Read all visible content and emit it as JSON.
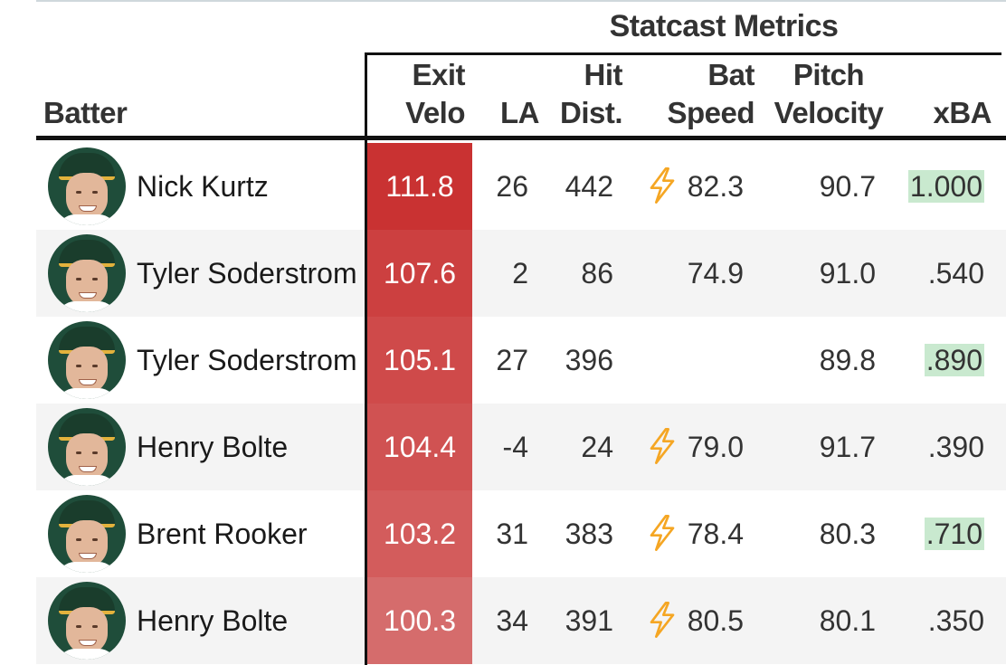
{
  "group_title": "Statcast Metrics",
  "headers": {
    "batter": "Batter",
    "exit_velo": [
      "Exit",
      "Velo"
    ],
    "la": "LA",
    "hit_dist": [
      "Hit",
      "Dist."
    ],
    "bat_speed": [
      "Bat",
      "Speed"
    ],
    "pitch_velocity": [
      "Pitch",
      "Velocity"
    ],
    "xba": "xBA"
  },
  "colors": {
    "ev_scale": [
      "#c93232",
      "#cc4040",
      "#cf4a4a",
      "#d05252",
      "#d35c5c",
      "#d56c6c"
    ],
    "xba_highlight": "#c9e9cf",
    "bolt": "#f5a623"
  },
  "rows": [
    {
      "batter": "Nick Kurtz",
      "exit_velo": "111.8",
      "la": "26",
      "hit_dist": "442",
      "bat_speed": "82.3",
      "fast_swing": true,
      "pitch_velocity": "90.7",
      "xba": "1.000",
      "xba_highlight": true
    },
    {
      "batter": "Tyler Soderstrom",
      "exit_velo": "107.6",
      "la": "2",
      "hit_dist": "86",
      "bat_speed": "74.9",
      "fast_swing": false,
      "pitch_velocity": "91.0",
      "xba": ".540",
      "xba_highlight": false
    },
    {
      "batter": "Tyler Soderstrom",
      "exit_velo": "105.1",
      "la": "27",
      "hit_dist": "396",
      "bat_speed": "",
      "fast_swing": false,
      "pitch_velocity": "89.8",
      "xba": ".890",
      "xba_highlight": true
    },
    {
      "batter": "Henry Bolte",
      "exit_velo": "104.4",
      "la": "-4",
      "hit_dist": "24",
      "bat_speed": "79.0",
      "fast_swing": true,
      "pitch_velocity": "91.7",
      "xba": ".390",
      "xba_highlight": false
    },
    {
      "batter": "Brent Rooker",
      "exit_velo": "103.2",
      "la": "31",
      "hit_dist": "383",
      "bat_speed": "78.4",
      "fast_swing": true,
      "pitch_velocity": "80.3",
      "xba": ".710",
      "xba_highlight": true
    },
    {
      "batter": "Henry Bolte",
      "exit_velo": "100.3",
      "la": "34",
      "hit_dist": "391",
      "bat_speed": "80.5",
      "fast_swing": true,
      "pitch_velocity": "80.1",
      "xba": ".350",
      "xba_highlight": false
    }
  ]
}
